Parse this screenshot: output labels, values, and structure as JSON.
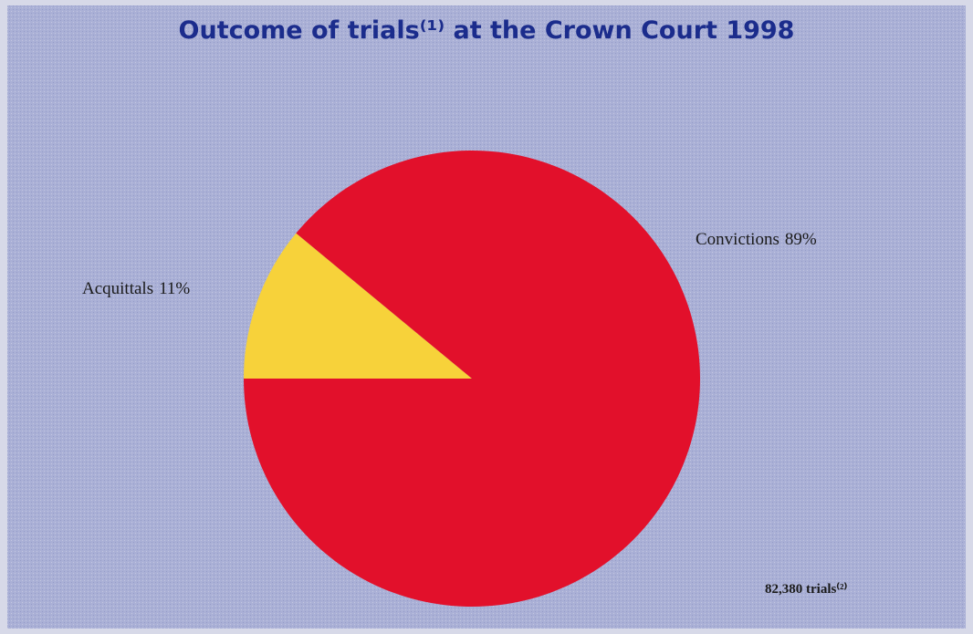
{
  "chart_data": {
    "type": "pie",
    "title": "Outcome of trials⁽¹⁾ at the Crown Court 1998",
    "categories": [
      "Acquittals",
      "Convictions"
    ],
    "values": [
      11,
      89
    ],
    "value_labels": [
      "11%",
      "89%"
    ],
    "colors": [
      "#f7d23a",
      "#e2102b"
    ],
    "annotation": "82,380 trials⁽²⁾"
  }
}
